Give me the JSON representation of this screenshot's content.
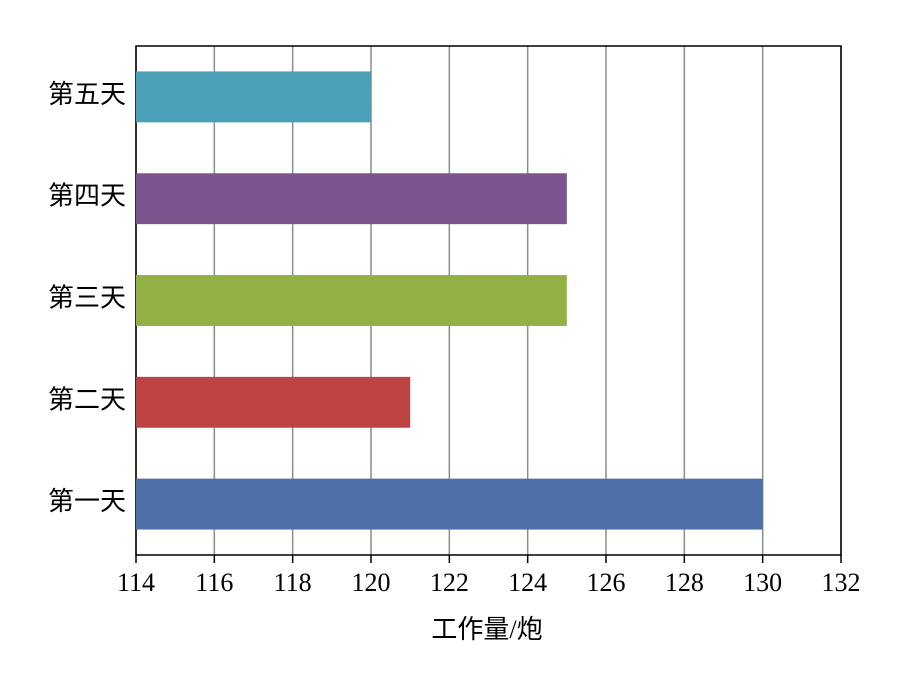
{
  "chart_data": {
    "type": "hbar",
    "categories": [
      "第一天",
      "第二天",
      "第三天",
      "第四天",
      "第五天"
    ],
    "values": [
      130,
      121,
      125,
      125,
      120
    ],
    "colors": [
      "#4f6fa8",
      "#bd4442",
      "#93b045",
      "#7b5490",
      "#4aa0b6"
    ],
    "x_label": "工作量/炮",
    "xlim": [
      114,
      132
    ],
    "xticks": [
      114,
      116,
      118,
      120,
      122,
      124,
      126,
      128,
      130,
      132
    ],
    "grid": true
  }
}
